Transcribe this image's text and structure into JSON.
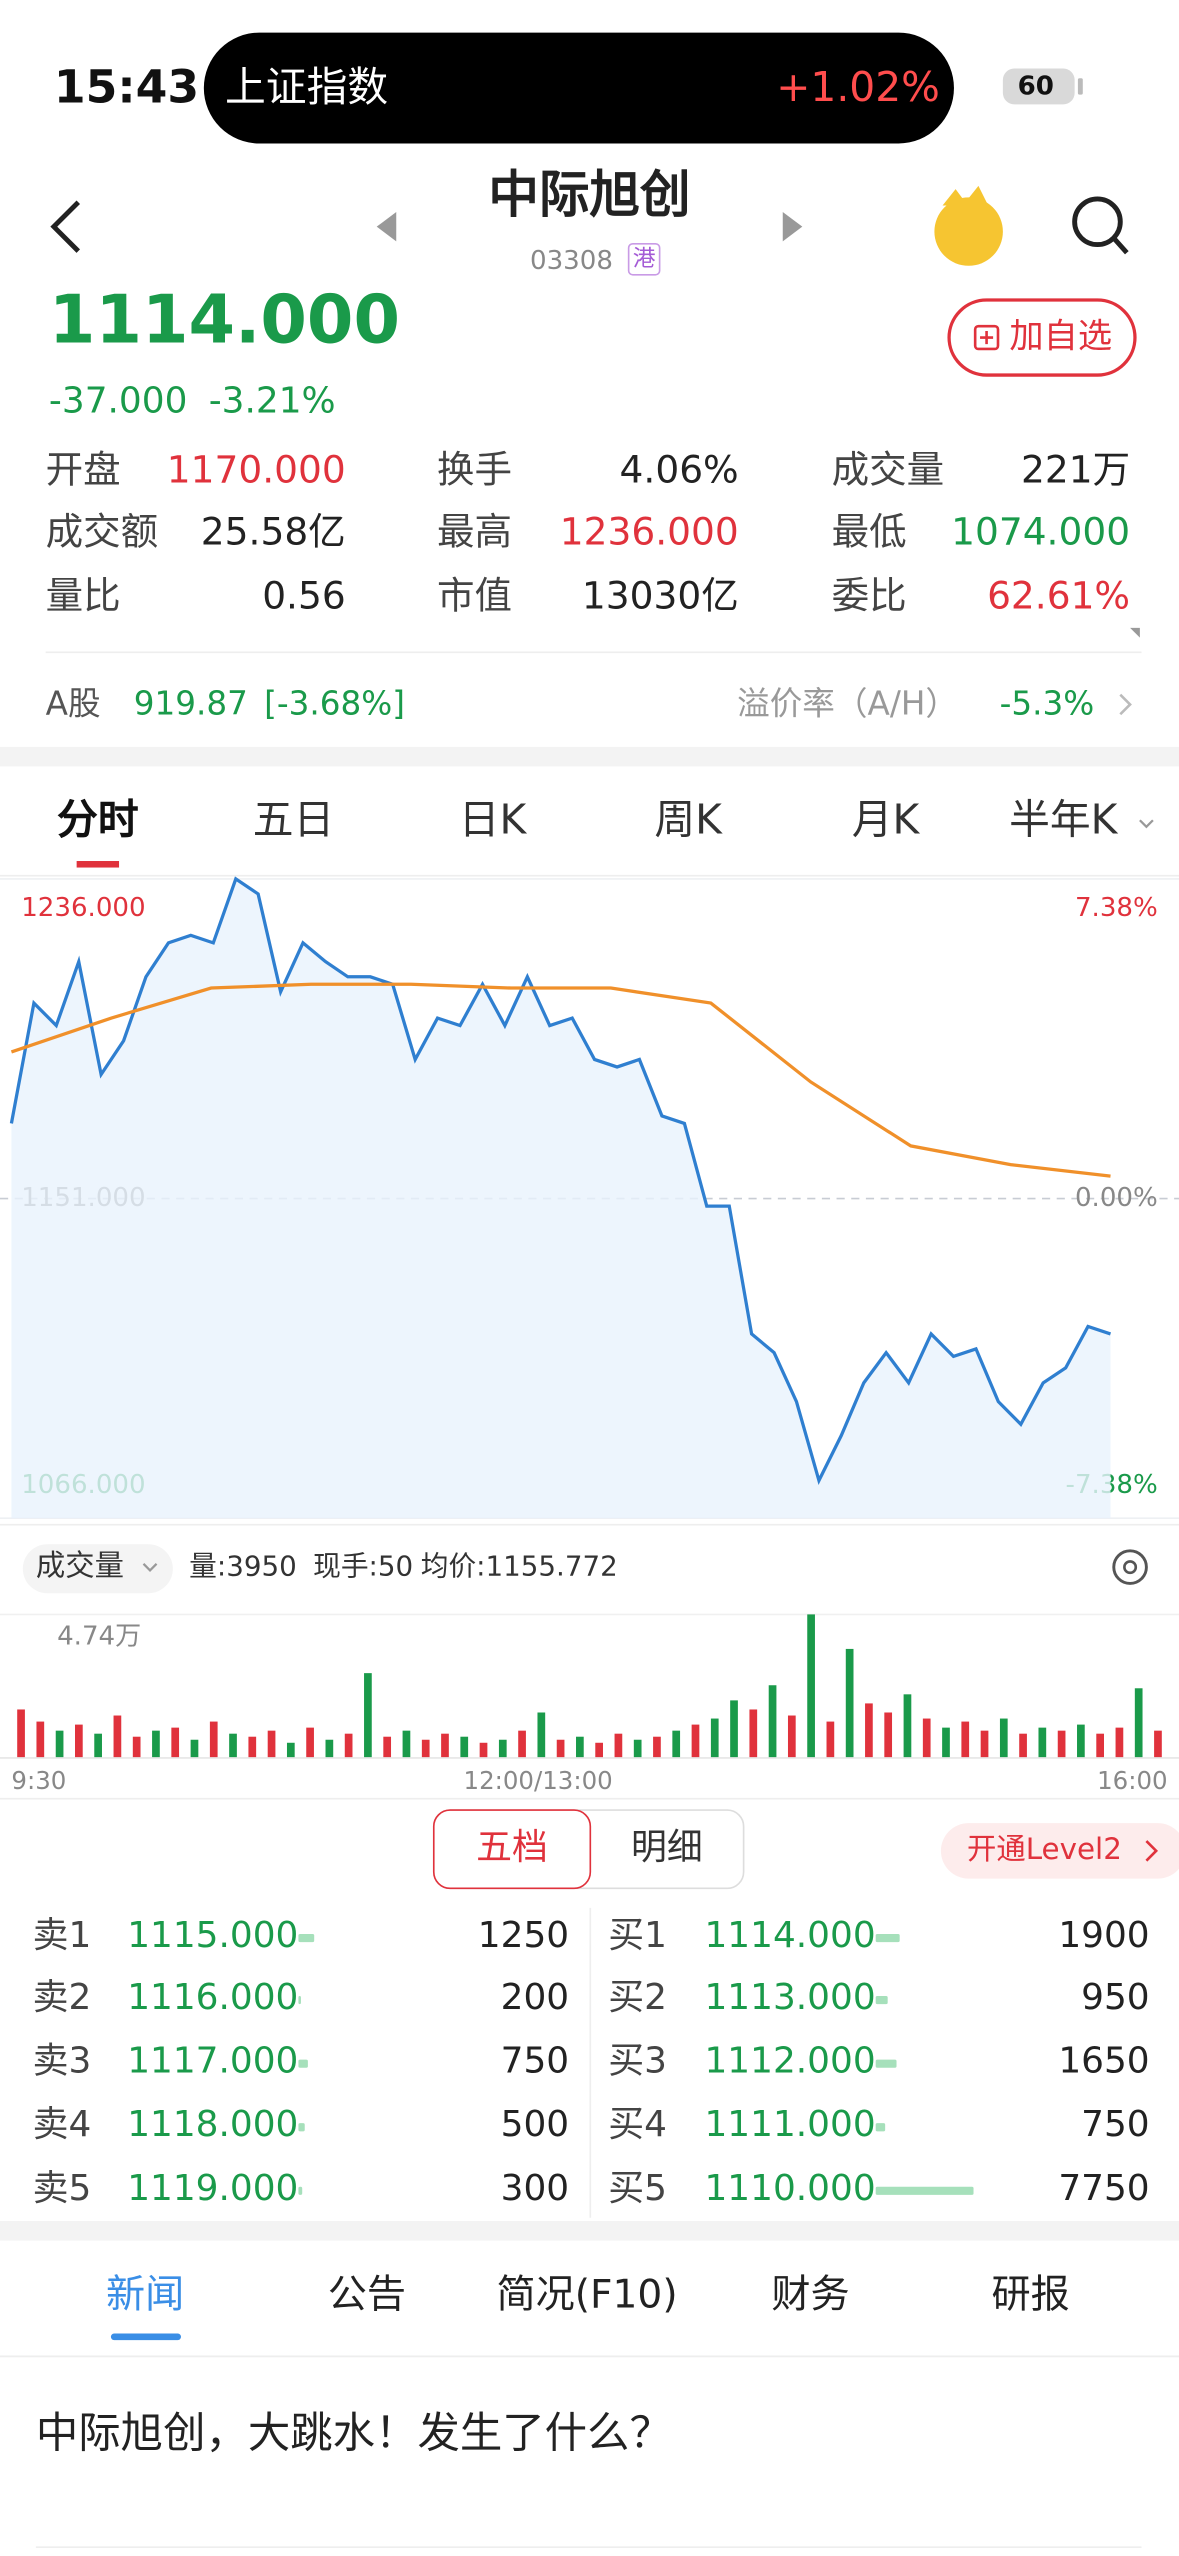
{
  "status_bar": {
    "time": "15:43",
    "index_name": "上证指数",
    "index_change": "+1.02%",
    "battery": "60"
  },
  "header": {
    "title": "中际旭创",
    "code": "03308",
    "market": "港"
  },
  "quote": {
    "price": "1114.000",
    "change": "-37.000",
    "change_pct": "-3.21%",
    "watch_button": "加自选",
    "stats": [
      [
        "开盘",
        "1170.000"
      ],
      [
        "换手",
        "4.06%"
      ],
      [
        "成交量",
        "221万"
      ],
      [
        "成交额",
        "25.58亿"
      ],
      [
        "最高",
        "1236.000"
      ],
      [
        "最低",
        "1074.000"
      ],
      [
        "量比",
        "0.56"
      ],
      [
        "市值",
        "13030亿"
      ],
      [
        "委比",
        "62.61%"
      ]
    ],
    "a_share_label": "A股",
    "a_share_price": "919.87",
    "a_share_change": "[-3.68%]",
    "premium_label": "溢价率（A/H）",
    "premium": "-5.3%"
  },
  "tabs": [
    "分时",
    "五日",
    "日K",
    "周K",
    "月K",
    "半年K"
  ],
  "chart_data": [
    {
      "type": "line",
      "ylim": [
        1066,
        1236
      ],
      "yticks": [
        {
          "value": 1236,
          "label": "1236.000"
        },
        {
          "value": 1151,
          "label": "1151.000"
        },
        {
          "value": 1066,
          "label": "1066.000"
        }
      ],
      "y2lim": [
        -7.38,
        7.38
      ],
      "y2ticks": [
        {
          "value": 7.38,
          "label": "7.38%"
        },
        {
          "value": 0,
          "label": "0.00%"
        },
        {
          "value": -7.38,
          "label": "-7.38%"
        }
      ],
      "series": [
        {
          "color": "#2f7fd0",
          "values": [
            1171,
            1203,
            1197,
            1214,
            1184,
            1193,
            1210,
            1219,
            1221,
            1219,
            1236,
            1232,
            1206,
            1219,
            1214,
            1210,
            1210,
            1208,
            1188,
            1199,
            1197,
            1208,
            1197,
            1210,
            1197,
            1199,
            1188,
            1186,
            1188,
            1173,
            1171,
            1149,
            1149,
            1115,
            1110,
            1097,
            1076,
            1088,
            1102,
            1110,
            1102,
            1115,
            1109,
            1111,
            1097,
            1091,
            1102,
            1106,
            1117,
            1115
          ]
        },
        {
          "color": "#f0902a",
          "values": [
            1190,
            1199,
            1207,
            1208,
            1208,
            1207,
            1207,
            1203,
            1182,
            1165,
            1160,
            1157
          ]
        }
      ]
    },
    {
      "type": "bar",
      "label": "成交量",
      "stats": [
        "量:3950",
        "现手:50",
        "均价:1155.772"
      ],
      "ylim": [
        0,
        4.74
      ],
      "yticks": [
        {
          "value": 4.74,
          "label": "4.74万"
        }
      ],
      "time_labels": [
        "9:30",
        "12:00/13:00",
        "16:00"
      ],
      "values": [
        1.6,
        1.2,
        0.9,
        1.1,
        0.8,
        1.4,
        0.7,
        0.9,
        1.0,
        0.6,
        1.2,
        0.8,
        0.7,
        0.9,
        0.5,
        1.0,
        0.6,
        0.8,
        2.8,
        0.7,
        0.9,
        0.6,
        0.8,
        0.7,
        0.5,
        0.6,
        0.9,
        1.5,
        0.6,
        0.7,
        0.5,
        0.8,
        0.6,
        0.7,
        0.9,
        1.1,
        1.3,
        1.9,
        1.6,
        2.4,
        1.4,
        4.74,
        1.2,
        3.6,
        1.8,
        1.5,
        2.1,
        1.3,
        1.0,
        1.2,
        0.9,
        1.3,
        0.8,
        1.0,
        0.9,
        1.1,
        0.8,
        1.0,
        2.3,
        0.9
      ],
      "colors": [
        "#e0323c",
        "#e0323c",
        "#1a9a4a",
        "#e0323c",
        "#1a9a4a",
        "#e0323c",
        "#e0323c",
        "#1a9a4a",
        "#e0323c",
        "#1a9a4a",
        "#e0323c",
        "#1a9a4a",
        "#e0323c",
        "#e0323c",
        "#1a9a4a",
        "#e0323c",
        "#1a9a4a",
        "#e0323c",
        "#1a9a4a",
        "#e0323c",
        "#1a9a4a",
        "#e0323c",
        "#e0323c",
        "#1a9a4a",
        "#e0323c",
        "#1a9a4a",
        "#e0323c",
        "#1a9a4a",
        "#e0323c",
        "#1a9a4a",
        "#e0323c",
        "#e0323c",
        "#1a9a4a",
        "#e0323c",
        "#1a9a4a",
        "#e0323c",
        "#1a9a4a",
        "#1a9a4a",
        "#e0323c",
        "#1a9a4a",
        "#e0323c",
        "#1a9a4a",
        "#e0323c",
        "#1a9a4a",
        "#e0323c",
        "#e0323c",
        "#1a9a4a",
        "#e0323c",
        "#1a9a4a",
        "#e0323c",
        "#e0323c",
        "#1a9a4a",
        "#e0323c",
        "#1a9a4a",
        "#e0323c",
        "#1a9a4a",
        "#e0323c",
        "#e0323c",
        "#1a9a4a",
        "#e0323c"
      ]
    }
  ],
  "order_book": {
    "tabs": [
      "五档",
      "明细"
    ],
    "level2": "开通Level2",
    "asks": [
      {
        "label": "卖1",
        "price": "1115.000",
        "volume": 1250
      },
      {
        "label": "卖2",
        "price": "1116.000",
        "volume": 200
      },
      {
        "label": "卖3",
        "price": "1117.000",
        "volume": 750
      },
      {
        "label": "卖4",
        "price": "1118.000",
        "volume": 500
      },
      {
        "label": "卖5",
        "price": "1119.000",
        "volume": 300
      }
    ],
    "bids": [
      {
        "label": "买1",
        "price": "1114.000",
        "volume": 1900
      },
      {
        "label": "买2",
        "price": "1113.000",
        "volume": 950
      },
      {
        "label": "买3",
        "price": "1112.000",
        "volume": 1650
      },
      {
        "label": "买4",
        "price": "1111.000",
        "volume": 750
      },
      {
        "label": "买5",
        "price": "1110.000",
        "volume": 7750
      }
    ]
  },
  "news_tabs": [
    "新闻",
    "公告",
    "简况(F10)",
    "财务",
    "研报"
  ],
  "headline": "中际旭创，大跳水！发生了什么？"
}
